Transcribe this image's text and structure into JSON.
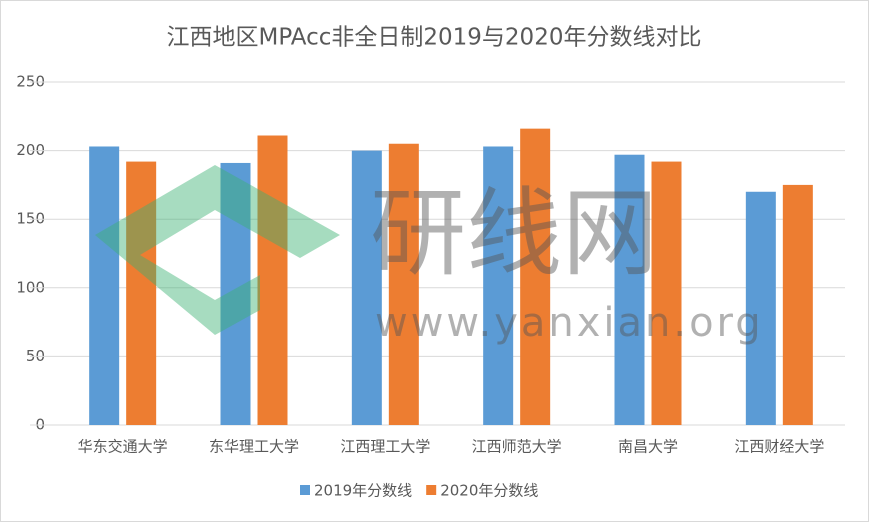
{
  "chart_data": {
    "type": "bar",
    "title": "江西地区MPAcc非全日制2019与2020年分数线对比",
    "categories": [
      "华东交通大学",
      "东华理工大学",
      "江西理工大学",
      "江西师范大学",
      "南昌大学",
      "江西财经大学"
    ],
    "series": [
      {
        "name": "2019年分数线",
        "color": "#5b9bd5",
        "values": [
          203,
          191,
          200,
          203,
          197,
          170
        ]
      },
      {
        "name": "2020年分数线",
        "color": "#ed7d31",
        "values": [
          192,
          211,
          205,
          216,
          192,
          175
        ]
      }
    ],
    "ylim": [
      0,
      250
    ],
    "yticks": [
      0,
      50,
      100,
      150,
      200,
      250
    ],
    "grid": true,
    "legend": "bottom",
    "annotations": [
      "研线网",
      "www.yanxian.org"
    ]
  }
}
